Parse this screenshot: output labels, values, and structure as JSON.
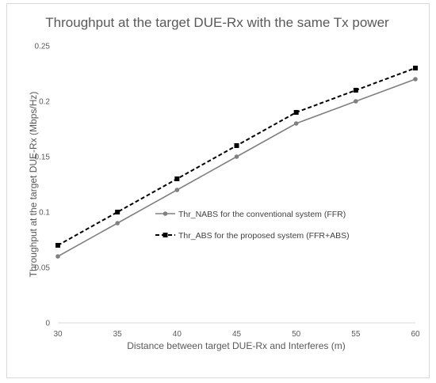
{
  "chart_data": {
    "type": "line",
    "title": "Throughput  at the target DUE-Rx  with the same Tx power",
    "xlabel": "Distance between target DUE-Rx and Interferes (m)",
    "ylabel": "Throughput  at the target DUE-Rx (Mbps/Hz)",
    "x": [
      30,
      35,
      40,
      45,
      50,
      55,
      60
    ],
    "xlim": [
      30,
      60
    ],
    "ylim": [
      0,
      0.25
    ],
    "x_ticks": [
      "30",
      "35",
      "40",
      "45",
      "50",
      "55",
      "60"
    ],
    "y_ticks": [
      "0",
      "0.05",
      "0.1",
      "0.15",
      "0.2",
      "0.25"
    ],
    "grid": false,
    "legend_position": "center-right",
    "series": [
      {
        "name": "Thr_NABS for the conventional system (FFR)",
        "values": [
          0.06,
          0.09,
          0.12,
          0.15,
          0.18,
          0.2,
          0.22
        ],
        "color": "#808080",
        "line_style": "solid",
        "marker": "circle"
      },
      {
        "name": "Thr_ABS for the proposed system (FFR+ABS)",
        "values": [
          0.07,
          0.1,
          0.13,
          0.16,
          0.19,
          0.21,
          0.23
        ],
        "color": "#000000",
        "line_style": "dashed",
        "marker": "square"
      }
    ]
  }
}
